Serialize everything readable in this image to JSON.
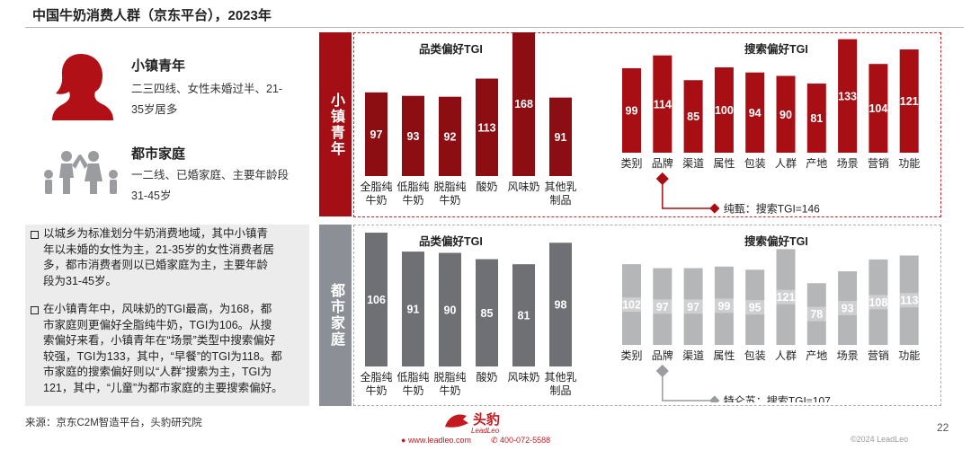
{
  "page": {
    "title": "中国牛奶消费人群（京东平台），2023年",
    "page_number": "22",
    "source": "来源：京东C2M智造平台，头豹研究院",
    "copyright": "©2024 LeadLeo",
    "logo_text": "头豹",
    "logo_sub": "LeadLeo",
    "website": "www.leadleo.com",
    "phone": "400-072-5588"
  },
  "personas": [
    {
      "name": "小镇青年",
      "desc_lines": [
        "二三四线、女性未婚过半、21-",
        "35岁居多"
      ]
    },
    {
      "name": "都市家庭",
      "desc_lines": [
        "一二线、已婚家庭、主要年龄段",
        "31-45岁"
      ]
    }
  ],
  "notes": [
    {
      "lines": [
        "以城乡为标准划分牛奶消费地域，其中小镇青",
        "年以未婚的女性为主，21-35岁的女性消费者居",
        "多，都市消费者则以已婚家庭为主，主要年龄",
        "段为31-45岁。"
      ]
    },
    {
      "lines": [
        "在小镇青年中，风味奶的TGI最高，为168，都",
        "市家庭则更偏好全脂纯牛奶，TGI为106。从搜",
        "索偏好来看，小镇青年在“场景”类型中搜索偏好",
        "较强，TGI为133，其中，“早餐”的TGI为118。都",
        "市家庭的搜索偏好则以“人群”搜索为主，TGI为",
        "121，其中，“儿童”为都市家庭的主要搜索偏好。"
      ]
    }
  ],
  "segments": [
    {
      "label": "小镇青年",
      "color": "#a30f14"
    },
    {
      "label": "都市家庭",
      "color": "#8c9096"
    }
  ],
  "colors": {
    "dark_red": "#8c0d12",
    "red": "#a80f14",
    "dark_gray": "#6e7073",
    "light_gray": "#b4b6b8"
  },
  "chart_data": [
    {
      "type": "bar",
      "segment": "小镇青年",
      "title": "品类偏好TGI",
      "categories": [
        [
          "全脂纯",
          "牛奶"
        ],
        [
          "低脂纯",
          "牛奶"
        ],
        [
          "脱脂纯",
          "牛奶"
        ],
        [
          "酸奶"
        ],
        [
          "风味奶"
        ],
        [
          "其他乳",
          "制品"
        ]
      ],
      "values": [
        97,
        93,
        92,
        113,
        168,
        91
      ],
      "ylim": [
        0,
        175
      ],
      "color": "#8c0d12"
    },
    {
      "type": "bar",
      "segment": "小镇青年",
      "title": "搜索偏好TGI",
      "categories": [
        "类别",
        "品牌",
        "渠道",
        "属性",
        "包装",
        "人群",
        "产地",
        "场景",
        "营销",
        "功能"
      ],
      "values": [
        99,
        114,
        85,
        100,
        94,
        90,
        81,
        133,
        104,
        121
      ],
      "ylim": [
        0,
        140
      ],
      "color": "#a80f14",
      "annotation": {
        "category": "品牌",
        "text": "纯甄：搜索TGI=146"
      }
    },
    {
      "type": "bar",
      "segment": "都市家庭",
      "title": "品类偏好TGI",
      "categories": [
        [
          "全脂纯",
          "牛奶"
        ],
        [
          "低脂纯",
          "牛奶"
        ],
        [
          "脱脂纯",
          "牛奶"
        ],
        [
          "酸奶"
        ],
        [
          "风味奶"
        ],
        [
          "其他乳",
          "制品"
        ]
      ],
      "values": [
        106,
        91,
        90,
        85,
        81,
        98
      ],
      "ylim": [
        0,
        111
      ],
      "color": "#6e7073"
    },
    {
      "type": "bar",
      "segment": "都市家庭",
      "title": "搜索偏好TGI",
      "categories": [
        "类别",
        "品牌",
        "渠道",
        "属性",
        "包装",
        "人群",
        "产地",
        "场景",
        "营销",
        "功能"
      ],
      "values": [
        102,
        97,
        97,
        99,
        95,
        121,
        78,
        93,
        108,
        113
      ],
      "ylim": [
        0,
        126
      ],
      "color": "#b4b6b8",
      "annotation": {
        "category": "品牌",
        "text": "特仑苏：搜索TGI=107"
      }
    }
  ]
}
